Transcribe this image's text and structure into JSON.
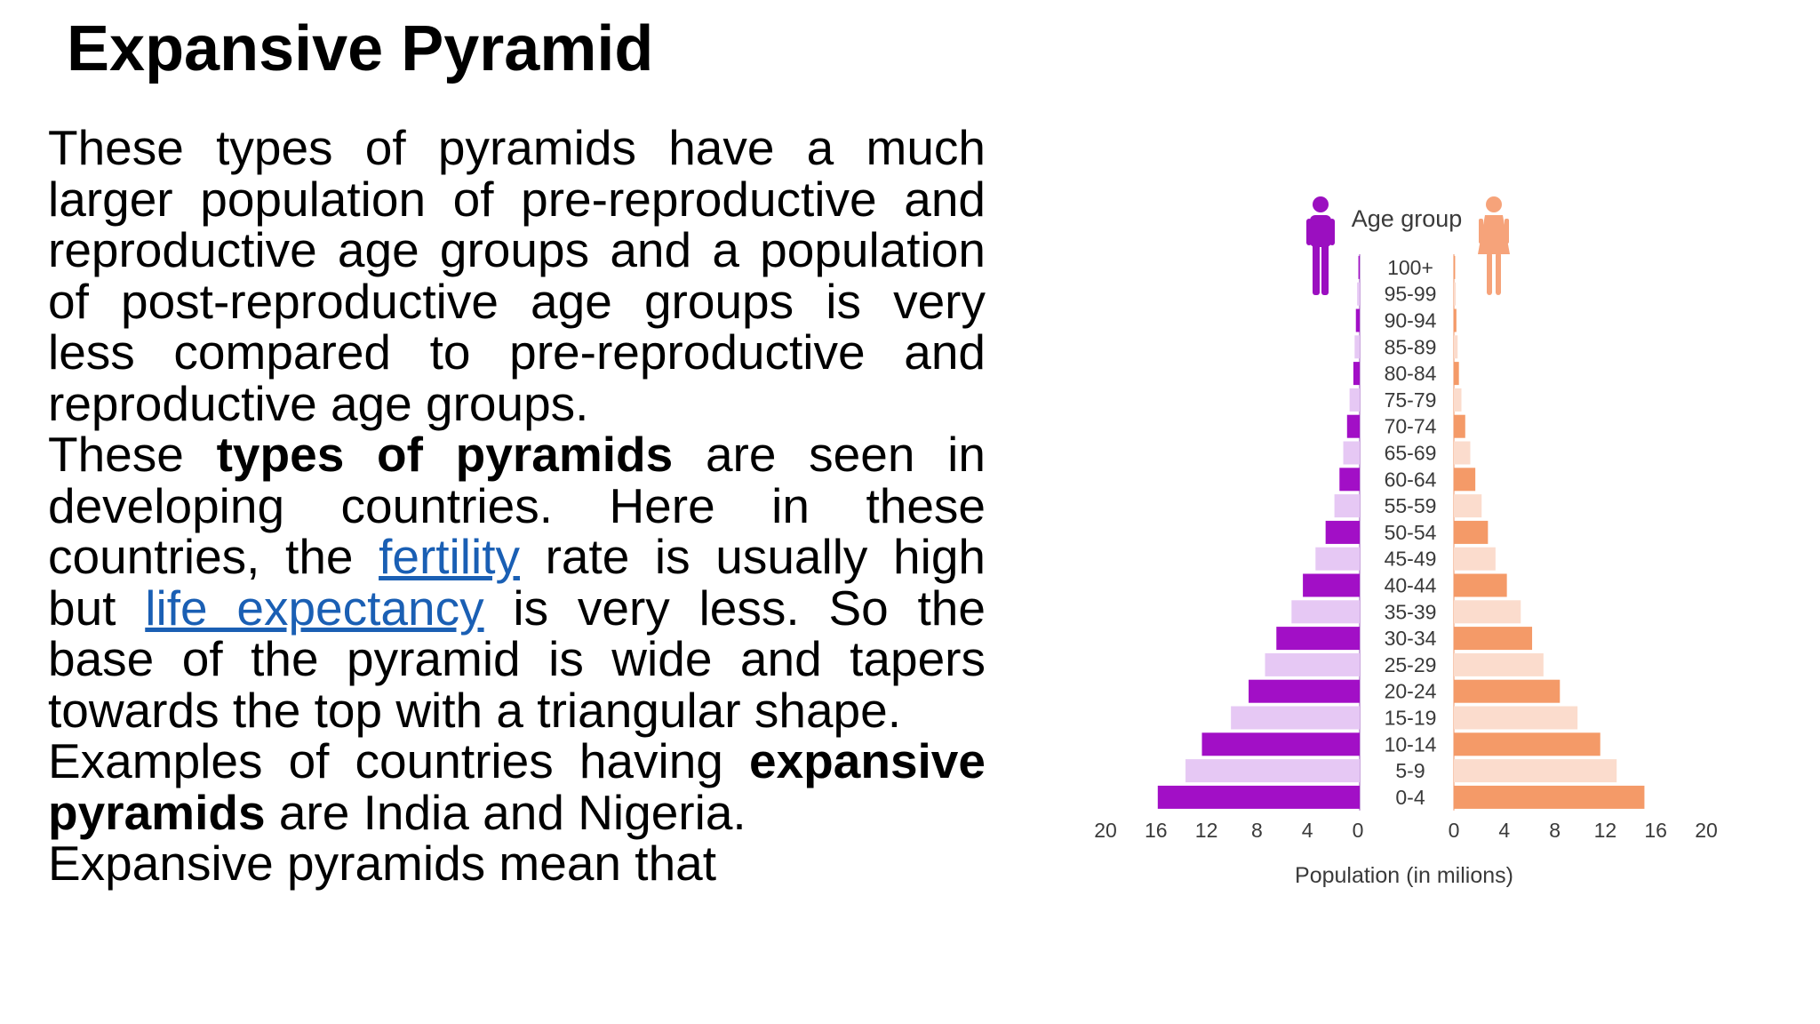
{
  "slide": {
    "title": "Expansive Pyramid",
    "bullets": [
      {
        "parts": [
          {
            "text": "These types of pyramids have a much larger population of pre-reproductive and reproductive age groups and a population of post-reproductive age groups is very less compared to pre-reproductive and reproductive age groups.",
            "style": "normal"
          }
        ]
      },
      {
        "parts": [
          {
            "text": "These ",
            "style": "normal"
          },
          {
            "text": "types of pyramids",
            "style": "bold"
          },
          {
            "text": " are seen in developing countries. Here in these countries, the ",
            "style": "normal"
          },
          {
            "text": "fertility",
            "style": "link"
          },
          {
            "text": " rate is usually high but ",
            "style": "normal"
          },
          {
            "text": "life expectancy",
            "style": "link"
          },
          {
            "text": " is very less. So the base of the pyramid is wide and tapers towards the top with a triangular shape.",
            "style": "normal"
          }
        ]
      },
      {
        "parts": [
          {
            "text": "Examples of countries having ",
            "style": "normal"
          },
          {
            "text": "expansive pyramids",
            "style": "bold"
          },
          {
            "text": " are India and Nigeria.",
            "style": "normal"
          }
        ]
      },
      {
        "parts": [
          {
            "text": "Expansive pyramids mean that",
            "style": "normal"
          }
        ]
      }
    ]
  },
  "chart_data": {
    "type": "bar",
    "orientation": "horizontal-population-pyramid",
    "title": "Age group",
    "xlabel": "Population (in milions)",
    "categories": [
      "100+",
      "95-99",
      "90-94",
      "85-89",
      "80-84",
      "75-79",
      "70-74",
      "65-69",
      "60-64",
      "55-59",
      "50-54",
      "45-49",
      "40-44",
      "35-39",
      "30-34",
      "25-29",
      "20-24",
      "15-19",
      "10-14",
      "5-9",
      "0-4"
    ],
    "series": [
      {
        "values": [
          0.1,
          0.2,
          0.3,
          0.4,
          0.5,
          0.8,
          1.0,
          1.3,
          1.6,
          2.0,
          2.7,
          3.5,
          4.5,
          5.4,
          6.6,
          7.5,
          8.8,
          10.2,
          12.5,
          13.8,
          16.0
        ]
      },
      {
        "values": [
          0.1,
          0.15,
          0.2,
          0.3,
          0.4,
          0.6,
          0.9,
          1.3,
          1.7,
          2.2,
          2.7,
          3.3,
          4.2,
          5.3,
          6.2,
          7.1,
          8.4,
          9.8,
          11.6,
          12.9,
          15.1
        ]
      }
    ],
    "xlim": [
      0,
      20
    ],
    "x_ticks_left": [
      "20",
      "16",
      "12",
      "8",
      "4",
      "0"
    ],
    "x_ticks_right": [
      "0",
      "4",
      "8",
      "12",
      "16",
      "20"
    ],
    "colors": {
      "male_dark": "#a20fc6",
      "male_light": "#e6c8f4",
      "female_dark": "#f49a68",
      "female_light": "#fbdccd",
      "male_icon": "#9b0fc0",
      "female_icon": "#f6a37a"
    },
    "icons": [
      "male-figure-icon",
      "female-figure-icon"
    ]
  }
}
